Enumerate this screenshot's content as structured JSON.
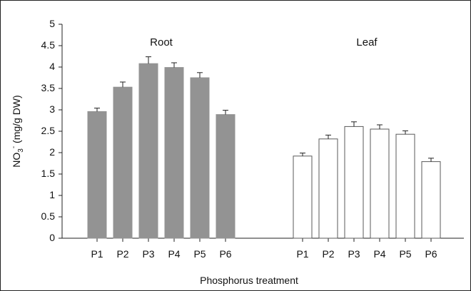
{
  "chart_data": {
    "type": "bar",
    "xlabel": "Phosphorus treatment",
    "ylabel": "NO3- (mg/g DW)",
    "ylabel_parts": {
      "prefix": "NO",
      "sub": "3",
      "sup": "-",
      "suffix": " (mg/g DW)"
    },
    "ylim": [
      0,
      5
    ],
    "yticks": [
      "0",
      "0.5",
      "1",
      "1.5",
      "2",
      "2.5",
      "3",
      "3.5",
      "4",
      "4.5",
      "5"
    ],
    "grid": false,
    "groups": [
      {
        "name": "Root",
        "fill": "#939393",
        "stroke": "#939393",
        "categories": [
          "P1",
          "P2",
          "P3",
          "P4",
          "P5",
          "P6"
        ],
        "values": [
          2.96,
          3.53,
          4.08,
          3.99,
          3.75,
          2.89
        ],
        "errors": [
          0.08,
          0.12,
          0.16,
          0.11,
          0.12,
          0.1
        ]
      },
      {
        "name": "Leaf",
        "fill": "#ffffff",
        "stroke": "#5a5a5a",
        "categories": [
          "P1",
          "P2",
          "P3",
          "P4",
          "P5",
          "P6"
        ],
        "values": [
          1.92,
          2.32,
          2.61,
          2.55,
          2.43,
          1.79
        ],
        "errors": [
          0.07,
          0.09,
          0.11,
          0.1,
          0.08,
          0.08
        ]
      }
    ]
  }
}
